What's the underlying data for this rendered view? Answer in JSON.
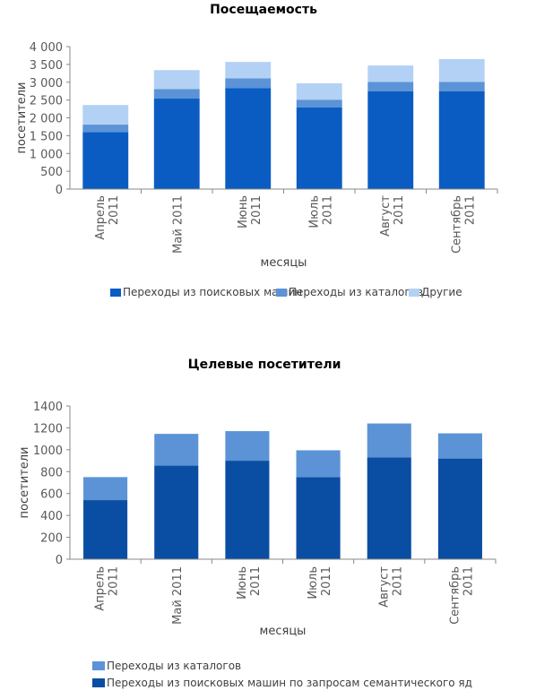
{
  "chart_data": [
    {
      "type": "bar",
      "stacked": true,
      "title": "Посещаемость",
      "xlabel": "месяцы",
      "ylabel": "посетители",
      "ylim": [
        0,
        4000
      ],
      "yticks": [
        "0",
        "500",
        "1 000",
        "1 500",
        "2 000",
        "2 500",
        "3 000",
        "3 500",
        "4 000"
      ],
      "categories": [
        [
          "Апрель",
          "2011"
        ],
        [
          "Май 2011"
        ],
        [
          "Июнь",
          "2011"
        ],
        [
          "Июль",
          "2011"
        ],
        [
          "Август",
          "2011"
        ],
        [
          "Сентябрь",
          "2011"
        ]
      ],
      "series": [
        {
          "name": "Переходы из поисковых машин",
          "color": "#0a5cc2",
          "values": [
            1600,
            2540,
            2830,
            2290,
            2750,
            2750
          ]
        },
        {
          "name": "Переходы из каталогов",
          "color": "#5b93d6",
          "values": [
            210,
            270,
            280,
            220,
            260,
            260
          ]
        },
        {
          "name": "Другие",
          "color": "#b3d1f5",
          "values": [
            550,
            530,
            460,
            460,
            460,
            640
          ]
        }
      ],
      "legend_position": "bottom"
    },
    {
      "type": "bar",
      "stacked": true,
      "title": "Целевые посетители",
      "xlabel": "месяцы",
      "ylabel": "посетители",
      "ylim": [
        0,
        1400
      ],
      "yticks": [
        "0",
        "200",
        "400",
        "600",
        "800",
        "1000",
        "1200",
        "1400"
      ],
      "categories": [
        [
          "Апрель",
          "2011"
        ],
        [
          "Май 2011"
        ],
        [
          "Июнь",
          "2011"
        ],
        [
          "Июль",
          "2011"
        ],
        [
          "Август",
          "2011"
        ],
        [
          "Сентябрь",
          "2011"
        ]
      ],
      "series": [
        {
          "name": "Переходы из поисковых машин по запросам семантического яд",
          "color": "#0a4ea3",
          "values": [
            540,
            855,
            900,
            750,
            930,
            920
          ]
        },
        {
          "name": "Переходы из каталогов",
          "color": "#5b93d6",
          "values": [
            210,
            290,
            270,
            245,
            310,
            230
          ]
        }
      ],
      "legend_position": "bottom"
    }
  ]
}
